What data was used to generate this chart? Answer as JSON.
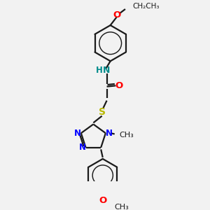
{
  "bg_color": "#f2f2f2",
  "bond_color": "#1a1a1a",
  "bond_width": 1.6,
  "N_color": "#0000ff",
  "O_color": "#ff0000",
  "S_color": "#b8b800",
  "NH_color": "#008b8b",
  "C_color": "#1a1a1a",
  "font_size": 8.5,
  "figsize": [
    3.0,
    3.0
  ],
  "dpi": 100,
  "xlim": [
    0,
    10
  ],
  "ylim": [
    0,
    10
  ]
}
